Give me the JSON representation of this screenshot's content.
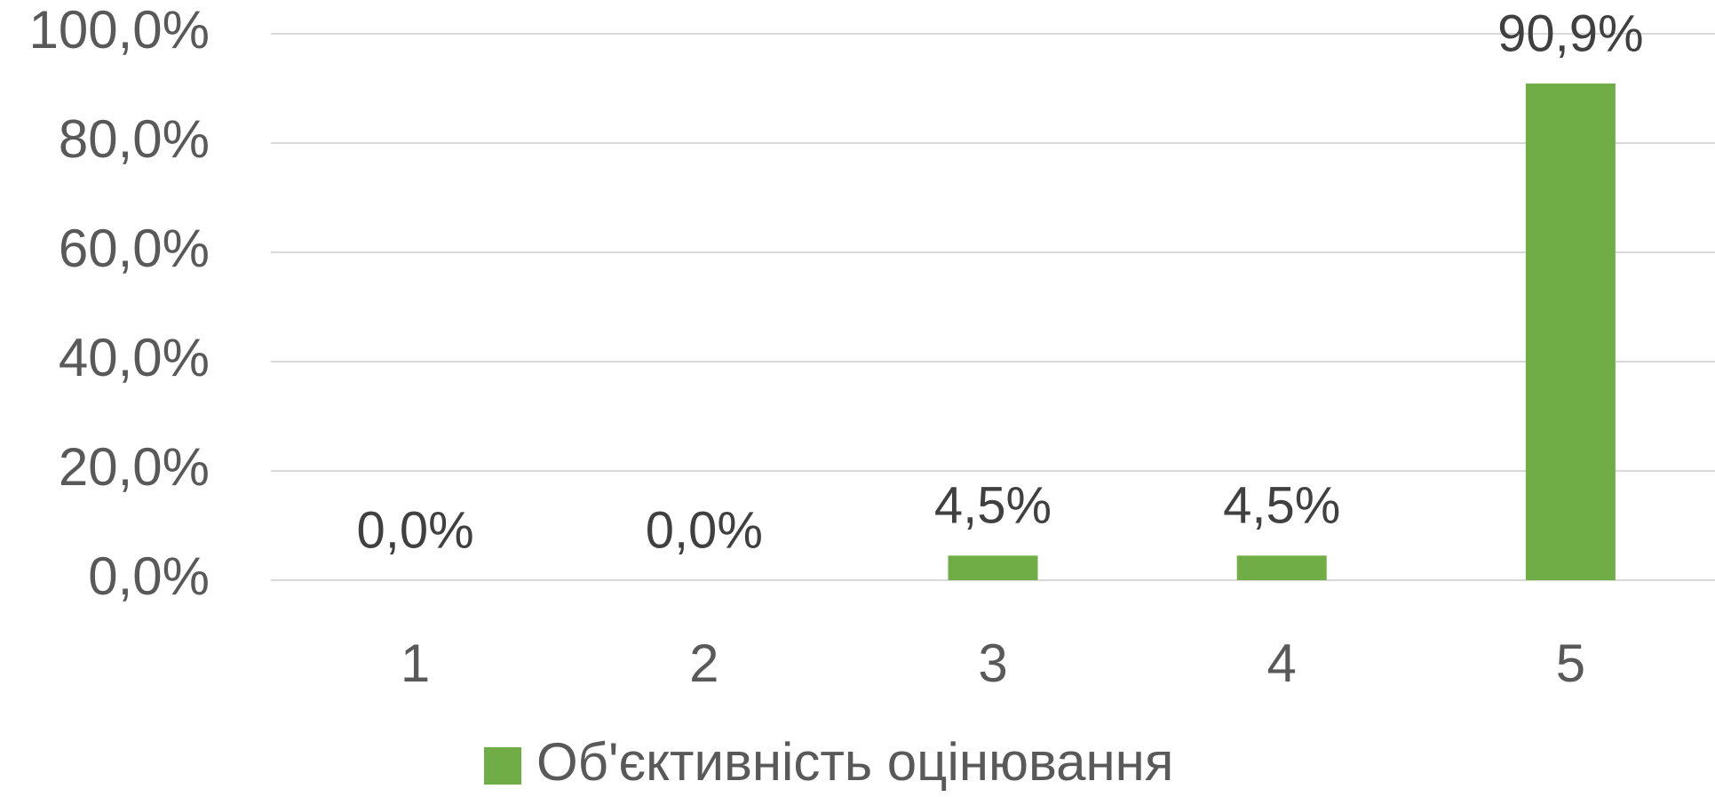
{
  "chart_data": {
    "type": "bar",
    "categories": [
      "1",
      "2",
      "3",
      "4",
      "5"
    ],
    "series": [
      {
        "name": "Об'єктивність оцінювання",
        "color": "#70ad47",
        "values": [
          0,
          0,
          4.5,
          4.5,
          90.9
        ],
        "value_labels": [
          "0,0%",
          "0,0%",
          "4,5%",
          "4,5%",
          "90,9%"
        ]
      }
    ],
    "ylim": [
      0,
      100
    ],
    "yticks": [
      {
        "value": 0,
        "label": "0,0%"
      },
      {
        "value": 20,
        "label": "20,0%"
      },
      {
        "value": 40,
        "label": "40,0%"
      },
      {
        "value": 60,
        "label": "60,0%"
      },
      {
        "value": 80,
        "label": "80,0%"
      },
      {
        "value": 100,
        "label": "100,0%"
      }
    ],
    "grid": true,
    "legend": "bottom"
  }
}
